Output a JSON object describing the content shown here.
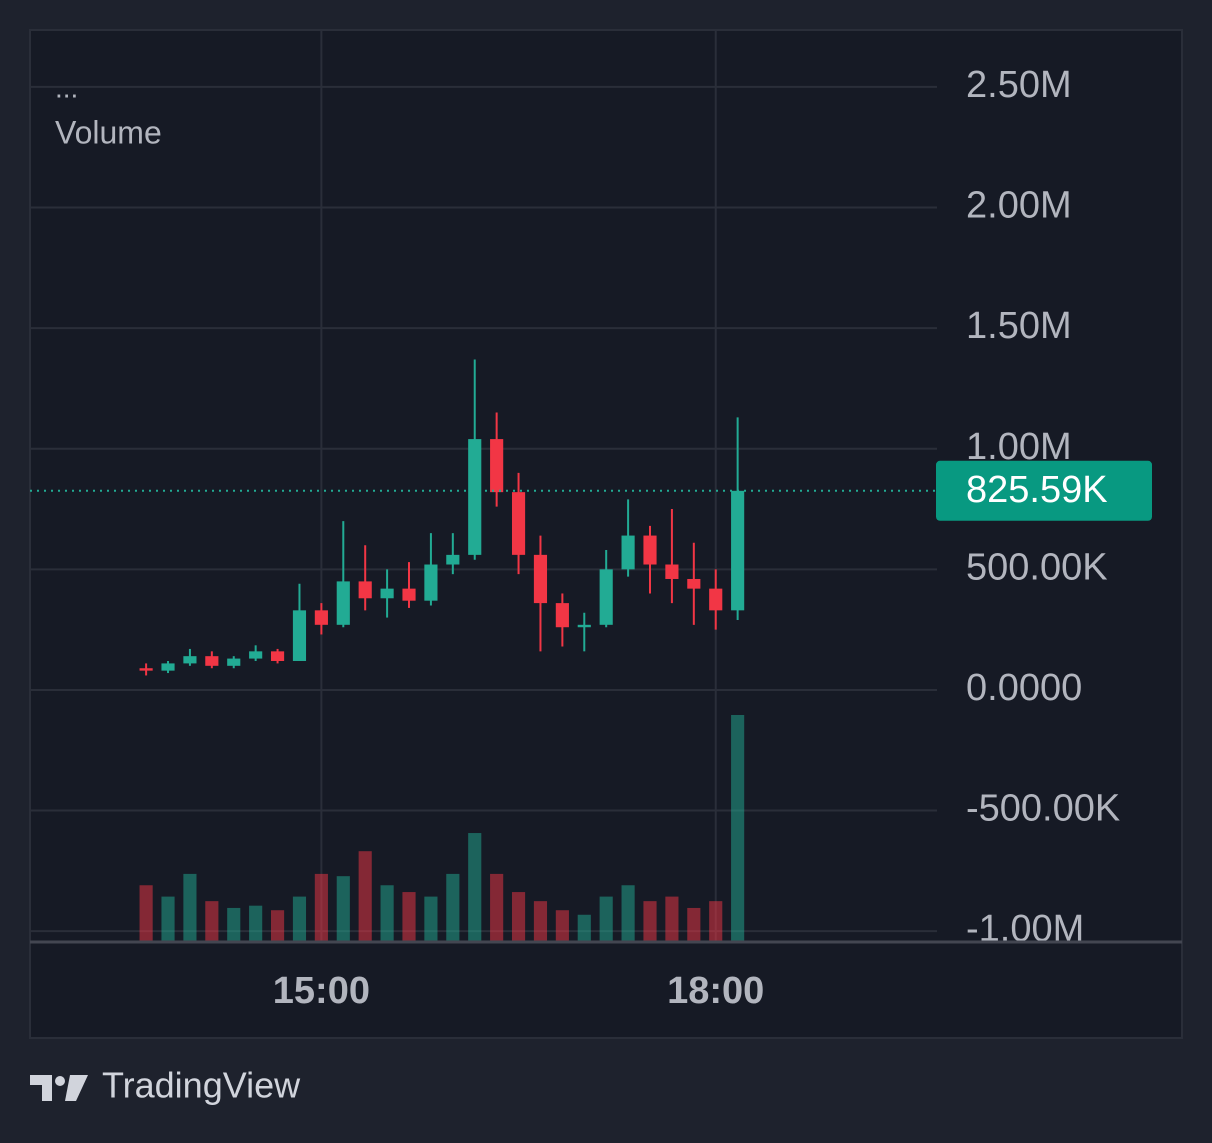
{
  "chart_data": {
    "type": "candlestick",
    "legend_text": "...",
    "volume_label": "Volume",
    "x": [
      820,
      830,
      840,
      850,
      860,
      870,
      880,
      890,
      900,
      910,
      920,
      930,
      940,
      950,
      960,
      970,
      980,
      990,
      1000,
      1010,
      1020,
      1030,
      1040,
      1050,
      1060,
      1070,
      1080,
      1090
    ],
    "open": [
      90000,
      80000,
      110000,
      140000,
      100000,
      130000,
      160000,
      120000,
      330000,
      270000,
      450000,
      380000,
      420000,
      370000,
      520000,
      560000,
      1040000,
      820000,
      560000,
      360000,
      260000,
      270000,
      500000,
      640000,
      520000,
      460000,
      420000,
      330000
    ],
    "high": [
      110000,
      120000,
      170000,
      160000,
      140000,
      185000,
      170000,
      440000,
      360000,
      700000,
      600000,
      500000,
      530000,
      650000,
      650000,
      1370000,
      1150000,
      900000,
      640000,
      400000,
      320000,
      580000,
      790000,
      680000,
      750000,
      610000,
      500000,
      1130000
    ],
    "low": [
      60000,
      70000,
      100000,
      90000,
      90000,
      120000,
      110000,
      130000,
      230000,
      260000,
      330000,
      300000,
      340000,
      350000,
      480000,
      540000,
      760000,
      480000,
      160000,
      180000,
      160000,
      260000,
      470000,
      400000,
      360000,
      270000,
      250000,
      290000
    ],
    "close": [
      80000,
      110000,
      140000,
      100000,
      130000,
      160000,
      120000,
      330000,
      270000,
      450000,
      380000,
      420000,
      370000,
      520000,
      560000,
      1040000,
      820000,
      560000,
      360000,
      260000,
      270000,
      500000,
      640000,
      520000,
      460000,
      420000,
      330000,
      825590
    ],
    "volume": [
      25,
      20,
      30,
      18,
      15,
      16,
      14,
      20,
      30,
      29,
      40,
      25,
      22,
      20,
      30,
      48,
      30,
      22,
      18,
      14,
      12,
      20,
      25,
      18,
      20,
      15,
      18,
      100
    ],
    "up_color": "#22ab94",
    "down_color": "#f23645",
    "xlim": [
      767,
      1181
    ],
    "ylim": [
      -1045000,
      2736000
    ],
    "xticks": [
      {
        "value": 900,
        "label": "15:00"
      },
      {
        "value": 1080,
        "label": "18:00"
      }
    ],
    "yticks": [
      {
        "value": 2500000,
        "label": "2.50M"
      },
      {
        "value": 2000000,
        "label": "2.00M"
      },
      {
        "value": 1500000,
        "label": "1.50M"
      },
      {
        "value": 1000000,
        "label": "1.00M"
      },
      {
        "value": 500000,
        "label": "500.00K"
      },
      {
        "value": 0,
        "label": "0.0000"
      },
      {
        "value": -500000,
        "label": "-500.00K"
      },
      {
        "value": -1000000,
        "label": "-1.00M"
      }
    ],
    "grid": true,
    "last_price": {
      "value": 825590,
      "label": "825.59K"
    }
  },
  "brand": "TradingView"
}
